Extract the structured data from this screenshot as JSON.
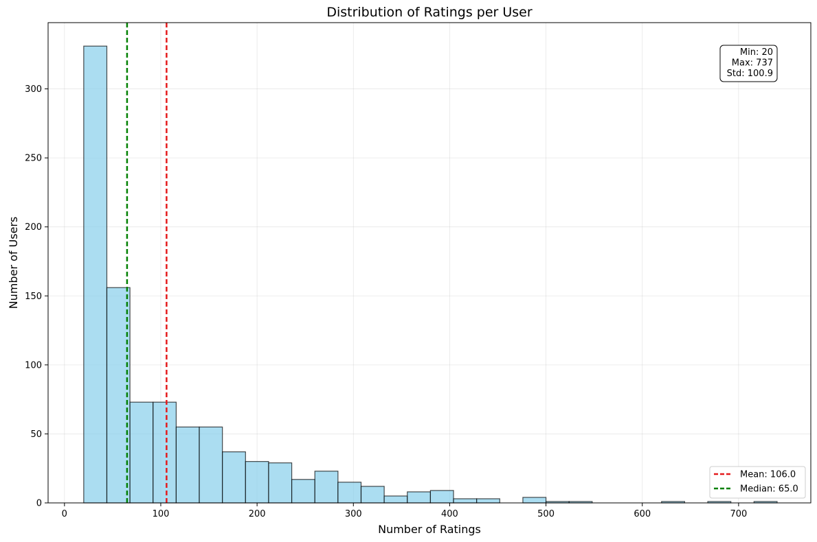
{
  "chart_data": {
    "type": "bar",
    "title": "Distribution of Ratings per User",
    "xlabel": "Number of Ratings",
    "ylabel": "Number of Users",
    "xlim": [
      -17,
      775
    ],
    "ylim": [
      0,
      348
    ],
    "xticks": [
      0,
      100,
      200,
      300,
      400,
      500,
      600,
      700
    ],
    "yticks": [
      0,
      50,
      100,
      150,
      200,
      250,
      300
    ],
    "grid": true,
    "bins": [
      {
        "x0": 20,
        "x1": 44,
        "count": 331
      },
      {
        "x0": 44,
        "x1": 68,
        "count": 156
      },
      {
        "x0": 68,
        "x1": 92,
        "count": 73
      },
      {
        "x0": 92,
        "x1": 116,
        "count": 73
      },
      {
        "x0": 116,
        "x1": 140,
        "count": 55
      },
      {
        "x0": 140,
        "x1": 164,
        "count": 55
      },
      {
        "x0": 164,
        "x1": 188,
        "count": 37
      },
      {
        "x0": 188,
        "x1": 212,
        "count": 30
      },
      {
        "x0": 212,
        "x1": 236,
        "count": 29
      },
      {
        "x0": 236,
        "x1": 260,
        "count": 17
      },
      {
        "x0": 260,
        "x1": 284,
        "count": 23
      },
      {
        "x0": 284,
        "x1": 308,
        "count": 15
      },
      {
        "x0": 308,
        "x1": 332,
        "count": 12
      },
      {
        "x0": 332,
        "x1": 356,
        "count": 5
      },
      {
        "x0": 356,
        "x1": 380,
        "count": 8
      },
      {
        "x0": 380,
        "x1": 404,
        "count": 9
      },
      {
        "x0": 404,
        "x1": 428,
        "count": 3
      },
      {
        "x0": 428,
        "x1": 452,
        "count": 3
      },
      {
        "x0": 452,
        "x1": 476,
        "count": 0
      },
      {
        "x0": 476,
        "x1": 500,
        "count": 4
      },
      {
        "x0": 500,
        "x1": 524,
        "count": 1
      },
      {
        "x0": 524,
        "x1": 548,
        "count": 1
      },
      {
        "x0": 548,
        "x1": 572,
        "count": 0
      },
      {
        "x0": 572,
        "x1": 596,
        "count": 0
      },
      {
        "x0": 596,
        "x1": 620,
        "count": 0
      },
      {
        "x0": 620,
        "x1": 644,
        "count": 1
      },
      {
        "x0": 644,
        "x1": 668,
        "count": 0
      },
      {
        "x0": 668,
        "x1": 692,
        "count": 1
      },
      {
        "x0": 692,
        "x1": 716,
        "count": 0
      },
      {
        "x0": 716,
        "x1": 740,
        "count": 1
      }
    ],
    "bar_color": "#87CEEB",
    "bar_edge_color": "#000000",
    "vlines": [
      {
        "name": "mean",
        "label": "Mean: 106.0",
        "x": 106.0,
        "color": "#e41a1c"
      },
      {
        "name": "median",
        "label": "Median: 65.0",
        "x": 65.0,
        "color": "#008000"
      }
    ],
    "legend_position": "bottom-right",
    "stats_box": {
      "position": "top-right",
      "lines": [
        "Min: 20",
        "Max: 737",
        "Std: 100.9"
      ]
    }
  }
}
